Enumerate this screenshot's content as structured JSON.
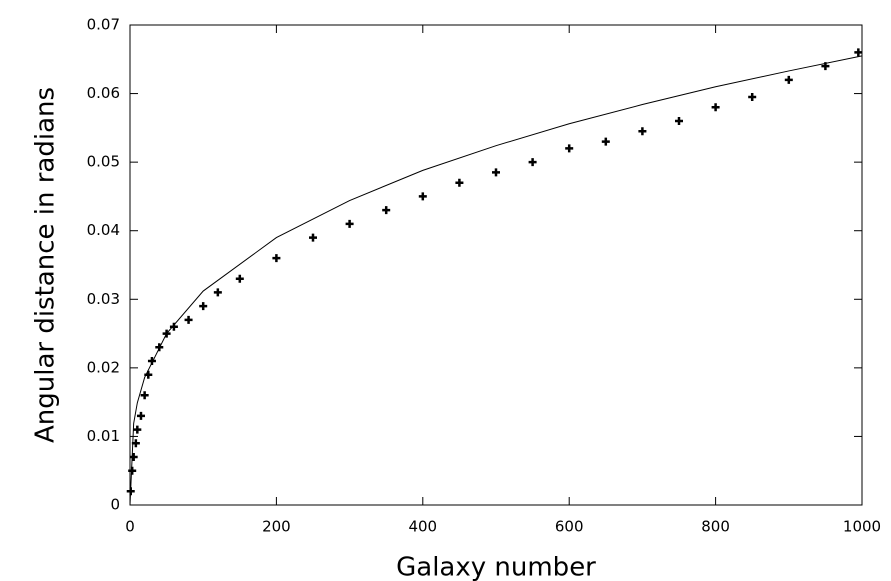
{
  "chart_data": {
    "type": "scatter",
    "x_label": "Galaxy number",
    "y_label": "Angular distance in radians",
    "xlim": [
      0,
      1000
    ],
    "xticks": [
      0,
      200,
      400,
      600,
      800,
      1000
    ],
    "ylim": [
      0,
      0.07
    ],
    "yticks": [
      0,
      0.01,
      0.02,
      0.03,
      0.04,
      0.05,
      0.06,
      0.07
    ],
    "series": [
      {
        "type": "scatter",
        "color": "#000000",
        "x": [
          1,
          3,
          5,
          8,
          10,
          15,
          20,
          25,
          30,
          40,
          50,
          60,
          80,
          100,
          120,
          150,
          200,
          250,
          300,
          350,
          400,
          450,
          500,
          550,
          600,
          650,
          700,
          750,
          800,
          850,
          900,
          950,
          995
        ],
        "values": [
          0.002,
          0.005,
          0.007,
          0.009,
          0.011,
          0.013,
          0.016,
          0.019,
          0.021,
          0.023,
          0.025,
          0.026,
          0.027,
          0.029,
          0.031,
          0.033,
          0.036,
          0.039,
          0.041,
          0.043,
          0.045,
          0.047,
          0.0485,
          0.05,
          0.052,
          0.053,
          0.0545,
          0.056,
          0.058,
          0.0595,
          0.062,
          0.064,
          0.066
        ]
      },
      {
        "type": "line",
        "color": "#000000",
        "x": [
          0,
          5,
          10,
          20,
          50,
          100,
          200,
          300,
          400,
          500,
          600,
          700,
          800,
          900,
          1000
        ],
        "values": [
          0,
          0.0119,
          0.0149,
          0.0186,
          0.025,
          0.0312,
          0.039,
          0.0444,
          0.0488,
          0.0524,
          0.0556,
          0.0584,
          0.061,
          0.0633,
          0.0655
        ]
      }
    ]
  }
}
